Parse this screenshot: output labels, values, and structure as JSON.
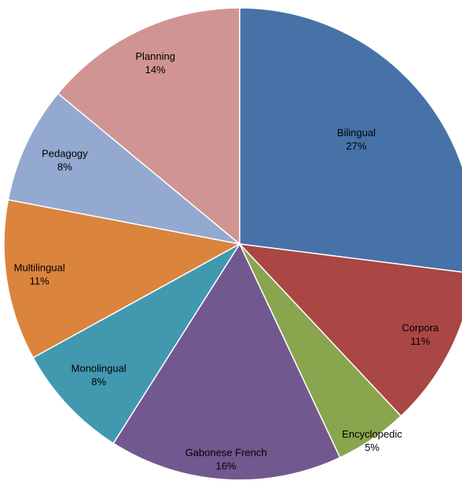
{
  "chart_data": {
    "type": "pie",
    "title": "",
    "start_angle_deg": 0,
    "direction": "clockwise",
    "legend": "none",
    "slices": [
      {
        "label": "Bilingual",
        "value": 27,
        "value_label": "27%",
        "color": "#4672A8"
      },
      {
        "label": "Corpora",
        "value": 11,
        "value_label": "11%",
        "color": "#AA4644"
      },
      {
        "label": "Encyclopedic",
        "value": 5,
        "value_label": "5%",
        "color": "#89A54E"
      },
      {
        "label": "Gabonese French",
        "value": 16,
        "value_label": "16%",
        "color": "#71588F"
      },
      {
        "label": "Monolingual",
        "value": 8,
        "value_label": "8%",
        "color": "#4198AF"
      },
      {
        "label": "Multilingual",
        "value": 11,
        "value_label": "11%",
        "color": "#DB843D"
      },
      {
        "label": "Pedagogy",
        "value": 8,
        "value_label": "8%",
        "color": "#93A9CF"
      },
      {
        "label": "Planning",
        "value": 14,
        "value_label": "14%",
        "color": "#D09493"
      }
    ]
  }
}
